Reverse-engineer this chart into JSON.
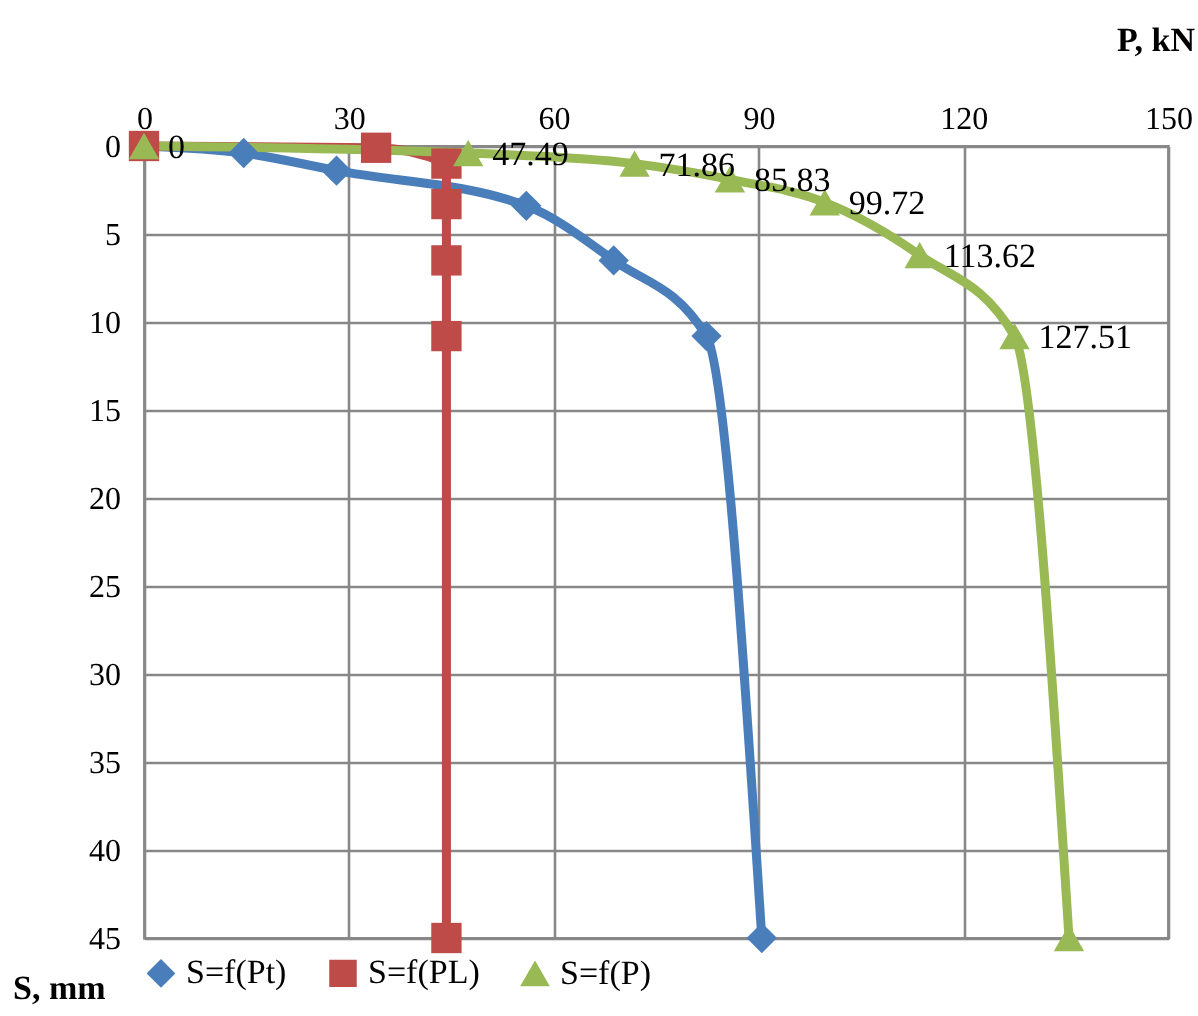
{
  "chart_data": {
    "type": "line",
    "xlabel": "P, kN",
    "ylabel": "S, mm",
    "xlim": [
      0,
      150
    ],
    "xticks": [
      0,
      30,
      60,
      90,
      120,
      150
    ],
    "ylim": [
      45,
      0
    ],
    "yticks": [
      0,
      5,
      10,
      15,
      20,
      25,
      30,
      35,
      40,
      45
    ],
    "grid": true,
    "legend": "bottom",
    "line_style": "solid",
    "series": [
      {
        "name": "S=f(Pt)",
        "color": "#4a7ebb",
        "marker": "diamond",
        "x": [
          0,
          14.6,
          28.2,
          56,
          68.8,
          82.4,
          90.5
        ],
        "values": [
          0,
          0.4,
          1.4,
          3.4,
          6.5,
          10.8,
          45
        ]
      },
      {
        "name": "S=f(PL)",
        "color": "#be4b48",
        "marker": "square",
        "x": [
          0,
          34,
          44.3,
          44.3,
          44.3,
          44.3,
          44.3
        ],
        "values": [
          0,
          0.1,
          1.0,
          3.3,
          6.5,
          10.8,
          45
        ]
      },
      {
        "name": "S=f(P)",
        "color": "#98b954",
        "marker": "triangle",
        "x": [
          0,
          47.49,
          71.86,
          85.83,
          99.72,
          113.62,
          127.51,
          135.5
        ],
        "values": [
          0,
          0.4,
          1.0,
          1.9,
          3.2,
          6.2,
          10.8,
          45
        ]
      }
    ],
    "annotations": [
      {
        "text": "0",
        "x": 0,
        "y": 0
      },
      {
        "text": "47.49",
        "x": 47.49,
        "y": 0.4
      },
      {
        "text": "71.86",
        "x": 71.86,
        "y": 1.0
      },
      {
        "text": "85.83",
        "x": 85.83,
        "y": 1.9
      },
      {
        "text": "99.72",
        "x": 99.72,
        "y": 3.2
      },
      {
        "text": "113.62",
        "x": 113.62,
        "y": 6.2
      },
      {
        "text": "127.51",
        "x": 127.51,
        "y": 10.8
      }
    ]
  }
}
